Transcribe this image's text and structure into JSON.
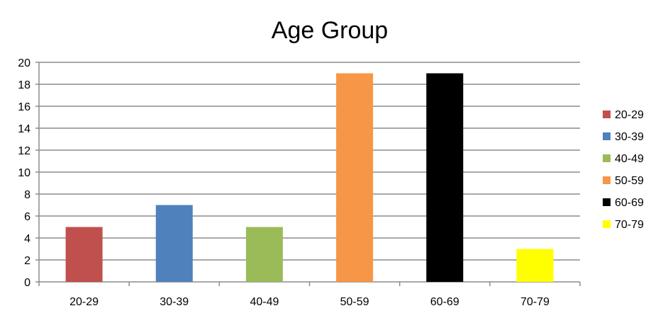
{
  "chart_data": {
    "type": "bar",
    "title": "Age Group",
    "xlabel": "",
    "ylabel": "",
    "categories": [
      "20-29",
      "30-39",
      "40-49",
      "50-59",
      "60-69",
      "70-79"
    ],
    "values": [
      5,
      7,
      5,
      19,
      19,
      3
    ],
    "colors": [
      "#c0504d",
      "#4f81bd",
      "#9bbb59",
      "#f79646",
      "#000000",
      "#ffff00"
    ],
    "ylim": [
      0,
      20
    ],
    "yticks": [
      "0",
      "2",
      "4",
      "6",
      "8",
      "10",
      "12",
      "14",
      "16",
      "18",
      "20"
    ],
    "grid": true,
    "legend": {
      "position": "right",
      "entries": [
        "20-29",
        "30-39",
        "40-49",
        "50-59",
        "60-69",
        "70-79"
      ]
    }
  }
}
